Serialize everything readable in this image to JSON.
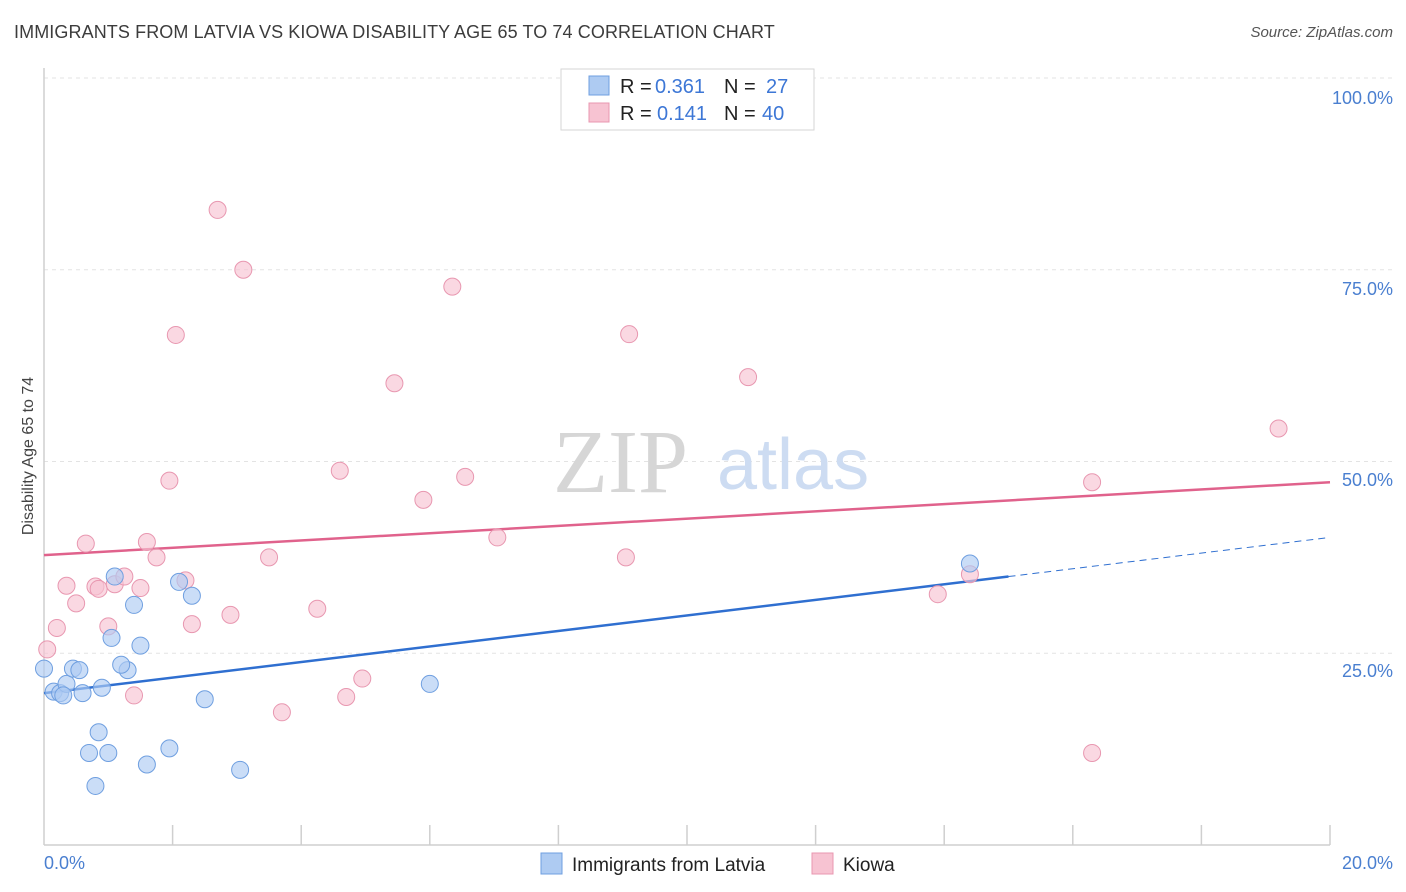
{
  "title": "IMMIGRANTS FROM LATVIA VS KIOWA DISABILITY AGE 65 TO 74 CORRELATION CHART",
  "source": "Source: ZipAtlas.com",
  "watermark": {
    "zip": "ZIP",
    "atlas": "atlas"
  },
  "legend": {
    "rows": [
      {
        "r_label": "R =",
        "r_value": "0.361",
        "n_label": "N =",
        "n_value": "27"
      },
      {
        "r_label": "R =",
        "r_value": "0.141",
        "n_label": "N =",
        "n_value": "40"
      }
    ]
  },
  "bottom_legend": [
    "Immigrants from Latvia",
    "Kiowa"
  ],
  "colors": {
    "latvia_fill": "#aecbf2",
    "latvia_stroke": "#6f9fe0",
    "latvia_line": "#2f6fd0",
    "kiowa_fill": "#f7c3d2",
    "kiowa_stroke": "#e897b0",
    "kiowa_line": "#e0628c",
    "tick": "#4a7fd0"
  },
  "chart_data": {
    "type": "scatter",
    "title": "IMMIGRANTS FROM LATVIA VS KIOWA DISABILITY AGE 65 TO 74 CORRELATION CHART",
    "xlabel": "",
    "ylabel": "Disability Age 65 to 74",
    "xlim": [
      0,
      20
    ],
    "ylim": [
      0,
      100
    ],
    "x_tick_labels": [
      "0.0%",
      "20.0%"
    ],
    "y_tick_labels": [
      "25.0%",
      "50.0%",
      "75.0%",
      "100.0%"
    ],
    "y_ticks": [
      25,
      50,
      75,
      100
    ],
    "series": [
      {
        "name": "Immigrants from Latvia",
        "R": 0.361,
        "N": 27,
        "trend": {
          "x0": 0,
          "y0": 19.8,
          "x1": 15.0,
          "y1": 35.0,
          "dash_to_x": 20,
          "dash_to_y": 40.1
        },
        "points": [
          [
            0.0,
            23.0
          ],
          [
            0.15,
            20.0
          ],
          [
            0.25,
            19.8
          ],
          [
            0.35,
            21.0
          ],
          [
            0.45,
            23.0
          ],
          [
            0.55,
            22.8
          ],
          [
            0.6,
            19.8
          ],
          [
            0.7,
            12.0
          ],
          [
            0.85,
            14.7
          ],
          [
            0.9,
            20.5
          ],
          [
            1.0,
            12.0
          ],
          [
            1.05,
            27.0
          ],
          [
            1.1,
            35.0
          ],
          [
            1.3,
            22.8
          ],
          [
            1.4,
            31.3
          ],
          [
            1.5,
            26.0
          ],
          [
            1.6,
            10.5
          ],
          [
            1.95,
            12.6
          ],
          [
            2.1,
            34.3
          ],
          [
            2.3,
            32.5
          ],
          [
            2.5,
            19.0
          ],
          [
            3.05,
            9.8
          ],
          [
            6.0,
            21.0
          ],
          [
            0.8,
            7.7
          ],
          [
            1.2,
            23.5
          ],
          [
            0.3,
            19.5
          ],
          [
            14.4,
            36.7
          ]
        ]
      },
      {
        "name": "Kiowa",
        "R": 0.141,
        "N": 40,
        "trend": {
          "x0": 0,
          "y0": 37.8,
          "x1": 20,
          "y1": 47.3
        },
        "points": [
          [
            0.05,
            25.5
          ],
          [
            0.2,
            28.3
          ],
          [
            0.35,
            33.8
          ],
          [
            0.5,
            31.5
          ],
          [
            0.65,
            39.3
          ],
          [
            0.8,
            33.7
          ],
          [
            0.85,
            33.4
          ],
          [
            1.0,
            28.5
          ],
          [
            1.1,
            34.0
          ],
          [
            1.25,
            35.0
          ],
          [
            1.4,
            19.5
          ],
          [
            1.5,
            33.5
          ],
          [
            1.6,
            39.5
          ],
          [
            1.75,
            37.5
          ],
          [
            1.95,
            47.5
          ],
          [
            2.05,
            66.5
          ],
          [
            2.2,
            34.5
          ],
          [
            2.3,
            28.8
          ],
          [
            2.7,
            82.8
          ],
          [
            2.9,
            30.0
          ],
          [
            3.1,
            75.0
          ],
          [
            3.5,
            37.5
          ],
          [
            3.7,
            17.3
          ],
          [
            4.25,
            30.8
          ],
          [
            4.6,
            48.8
          ],
          [
            4.7,
            19.3
          ],
          [
            4.95,
            21.7
          ],
          [
            5.45,
            60.2
          ],
          [
            5.9,
            45.0
          ],
          [
            6.35,
            72.8
          ],
          [
            6.55,
            48.0
          ],
          [
            7.05,
            40.1
          ],
          [
            9.05,
            37.5
          ],
          [
            9.1,
            66.6
          ],
          [
            10.95,
            61.0
          ],
          [
            13.9,
            32.7
          ],
          [
            14.4,
            35.3
          ],
          [
            16.3,
            12.0
          ],
          [
            16.3,
            47.3
          ],
          [
            19.2,
            54.3
          ]
        ]
      }
    ]
  }
}
